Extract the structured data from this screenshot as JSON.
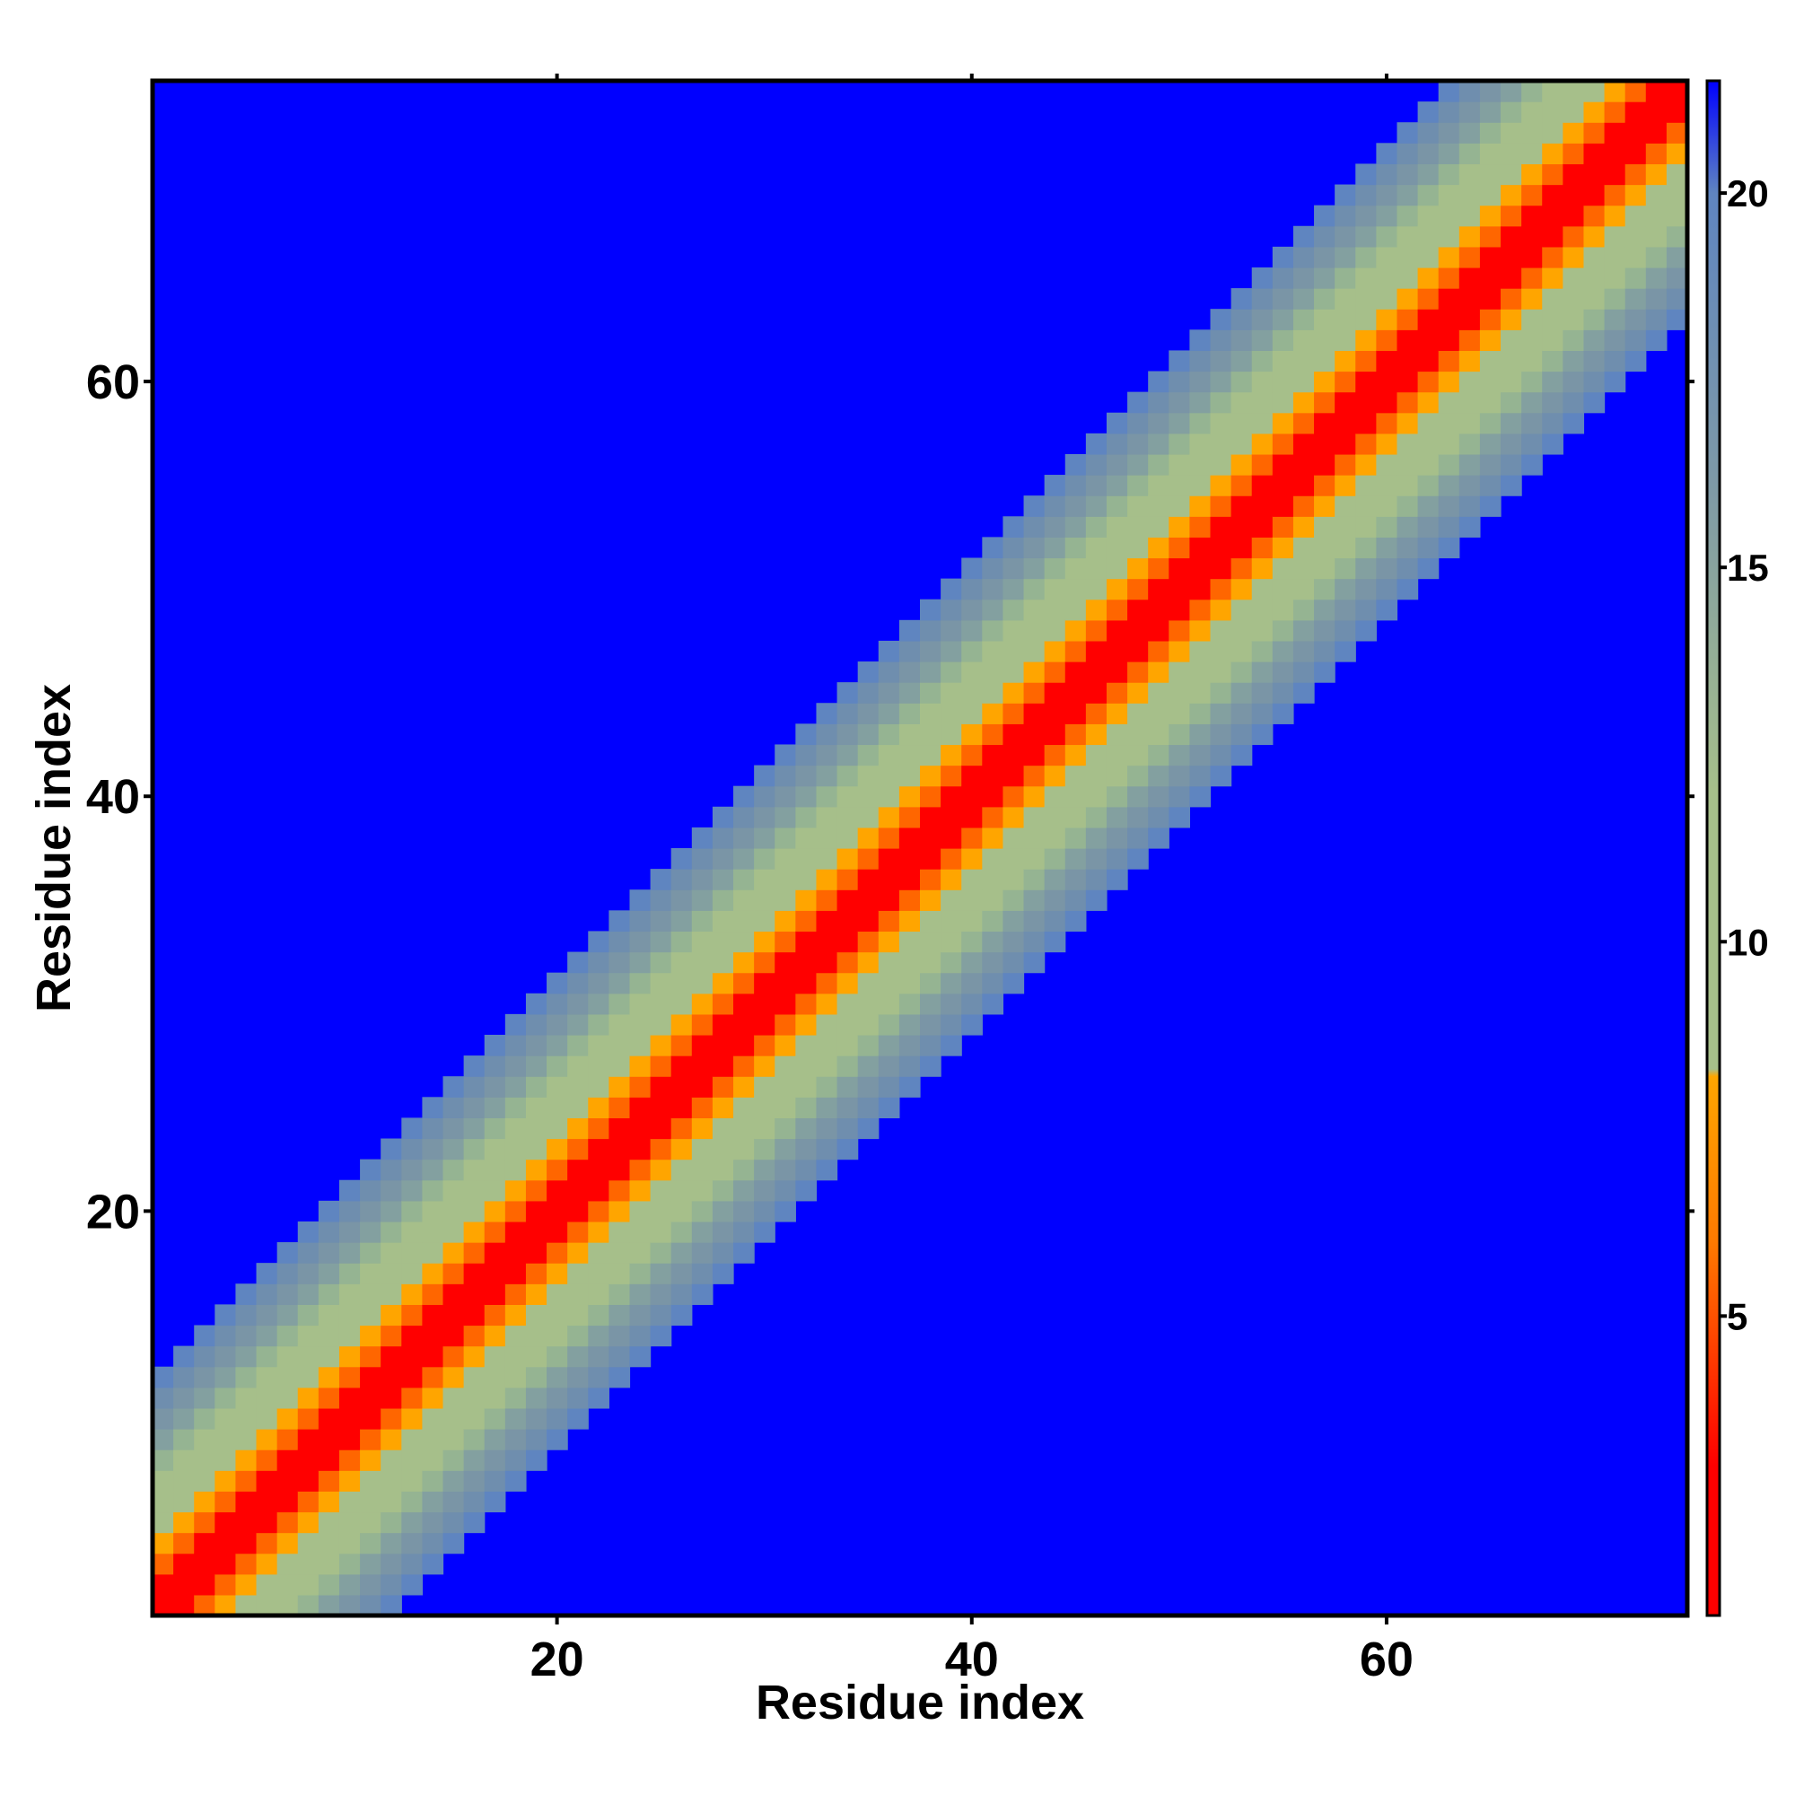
{
  "chart_data": {
    "type": "heatmap",
    "title": "",
    "xlabel": "Residue index",
    "ylabel": "Residue index",
    "n_residues": 74,
    "xlim": [
      1,
      74
    ],
    "ylim": [
      1,
      74
    ],
    "x_ticks": [
      20,
      40,
      60
    ],
    "y_ticks": [
      20,
      40,
      60
    ],
    "x_tick_labels": [
      "20",
      "40",
      "60"
    ],
    "y_tick_labels": [
      "20",
      "40",
      "60"
    ],
    "value_description": "distance between residue i and residue j, approximately proportional to |i - j|, saturating above the colorbar maximum",
    "diagonal_band": [
      {
        "offset": 0,
        "value": 1.5,
        "color": "#ff0000"
      },
      {
        "offset": 1,
        "value": 3.8,
        "color": "#ff0000"
      },
      {
        "offset": 2,
        "value": 5.5,
        "color": "#ff6600"
      },
      {
        "offset": 3,
        "value": 7.0,
        "color": "#ffa500"
      },
      {
        "offset": 4,
        "value": 9.0,
        "color": "#a6bf8a"
      },
      {
        "offset": 5,
        "value": 10.5,
        "color": "#a6bf8a"
      },
      {
        "offset": 6,
        "value": 12.0,
        "color": "#a6bf8a"
      },
      {
        "offset": 7,
        "value": 13.5,
        "color": "#95b492"
      },
      {
        "offset": 8,
        "value": 15.0,
        "color": "#83a0a0"
      },
      {
        "offset": 9,
        "value": 16.5,
        "color": "#7a95a6"
      },
      {
        "offset": 10,
        "value": 18.0,
        "color": "#6f8eae"
      },
      {
        "offset": 11,
        "value": 19.5,
        "color": "#5f85c0"
      }
    ],
    "saturated_color": "#0000ff",
    "colorbar": {
      "min": 1,
      "max": 21.5,
      "ticks": [
        5,
        10,
        15,
        20
      ],
      "tick_labels": [
        "5",
        "10",
        "15",
        "20"
      ],
      "stops": [
        {
          "value": 1,
          "color": "#ff0000"
        },
        {
          "value": 3,
          "color": "#ff0000"
        },
        {
          "value": 6,
          "color": "#ff7a00"
        },
        {
          "value": 8.2,
          "color": "#ffa500"
        },
        {
          "value": 8.3,
          "color": "#a6bf8a"
        },
        {
          "value": 12,
          "color": "#a6bf8a"
        },
        {
          "value": 16,
          "color": "#7f9aa6"
        },
        {
          "value": 20,
          "color": "#5f85c0"
        },
        {
          "value": 21.5,
          "color": "#0000ff"
        }
      ]
    }
  }
}
